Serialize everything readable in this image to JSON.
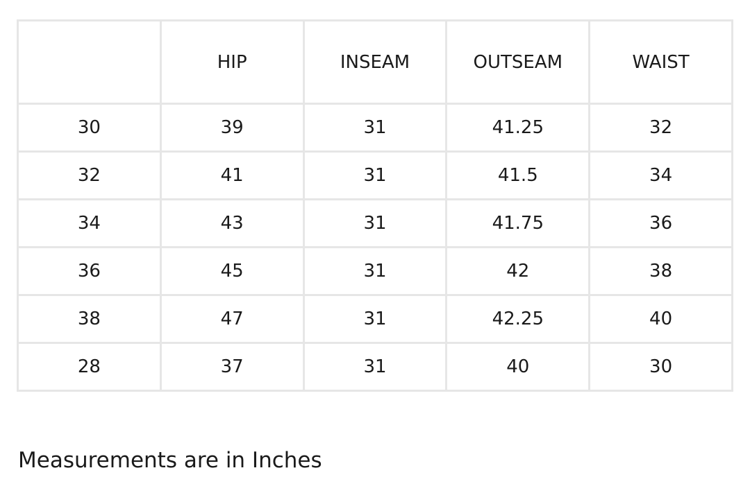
{
  "table": {
    "headers": [
      "",
      "HIP",
      "INSEAM",
      "OUTSEAM",
      "WAIST"
    ],
    "rows": [
      [
        "30",
        "39",
        "31",
        "41.25",
        "32"
      ],
      [
        "32",
        "41",
        "31",
        "41.5",
        "34"
      ],
      [
        "34",
        "43",
        "31",
        "41.75",
        "36"
      ],
      [
        "36",
        "45",
        "31",
        "42",
        "38"
      ],
      [
        "38",
        "47",
        "31",
        "42.25",
        "40"
      ],
      [
        "28",
        "37",
        "31",
        "40",
        "30"
      ]
    ]
  },
  "note": "Measurements are in Inches"
}
